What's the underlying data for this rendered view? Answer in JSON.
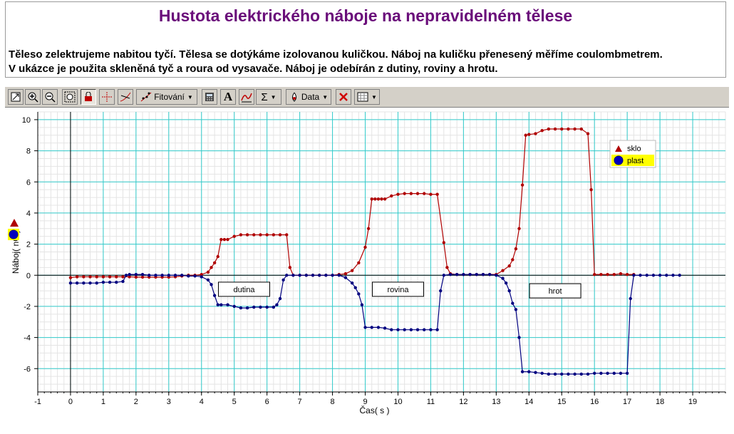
{
  "header": {
    "title": "Hustota elektrického náboje na nepravidelném tělese",
    "description_line1": "Těleso zelektrujeme nabitou tyčí. Tělesa se dotýkáme izolovanou kuličkou. Náboj na kuličku přenesený měříme coulombmetrem.",
    "description_line2": "V ukázce je použita skleněná tyč a roura od vysavače. Náboj je odebírán z dutiny, roviny a hrotu."
  },
  "toolbar": {
    "fit_label": "Fitování",
    "data_label": "Data",
    "sigma_label": "Σ",
    "text_label": "A"
  },
  "colors": {
    "sklo": "#b00000",
    "plast": "#000080",
    "grid": "#33cccc",
    "minor_grid": "#e4e4e4",
    "title": "#6a0d7a"
  },
  "chart_data": {
    "type": "line",
    "xlabel": "Čas( s )",
    "ylabel": "Náboj( nC )",
    "xlim": [
      -1,
      20
    ],
    "ylim": [
      -7.5,
      10.5
    ],
    "xticks": [
      -1,
      0,
      1,
      2,
      3,
      4,
      5,
      6,
      7,
      8,
      9,
      10,
      11,
      12,
      13,
      14,
      15,
      16,
      17,
      18,
      19
    ],
    "yticks": [
      -6,
      -4,
      -2,
      0,
      2,
      4,
      6,
      8,
      10
    ],
    "grid": true,
    "legend_position": "top-right",
    "series": [
      {
        "name": "sklo",
        "marker": "triangle",
        "x": [
          0.0,
          0.2,
          0.4,
          0.6,
          0.8,
          1.0,
          1.2,
          1.4,
          1.6,
          1.8,
          2.0,
          2.2,
          2.4,
          2.6,
          2.8,
          3.0,
          3.2,
          3.4,
          3.6,
          3.8,
          4.0,
          4.2,
          4.3,
          4.4,
          4.5,
          4.6,
          4.7,
          4.8,
          5.0,
          5.2,
          5.4,
          5.6,
          5.8,
          6.0,
          6.2,
          6.4,
          6.6,
          6.7,
          6.8,
          7.0,
          7.2,
          7.4,
          7.6,
          7.8,
          8.0,
          8.2,
          8.4,
          8.6,
          8.8,
          9.0,
          9.1,
          9.2,
          9.3,
          9.4,
          9.5,
          9.6,
          9.8,
          10.0,
          10.2,
          10.4,
          10.6,
          10.8,
          11.0,
          11.2,
          11.4,
          11.5,
          11.6,
          11.8,
          12.0,
          12.2,
          12.4,
          12.6,
          12.8,
          13.0,
          13.2,
          13.4,
          13.5,
          13.6,
          13.7,
          13.8,
          13.9,
          14.0,
          14.2,
          14.4,
          14.6,
          14.8,
          15.0,
          15.2,
          15.4,
          15.6,
          15.8,
          15.9,
          16.0,
          16.2,
          16.4,
          16.6,
          16.8,
          17.0,
          17.2
        ],
        "y": [
          -0.15,
          -0.1,
          -0.1,
          -0.1,
          -0.1,
          -0.1,
          -0.1,
          -0.1,
          -0.1,
          -0.1,
          -0.12,
          -0.12,
          -0.12,
          -0.12,
          -0.12,
          -0.12,
          -0.1,
          -0.05,
          0.0,
          0.0,
          0.05,
          0.2,
          0.5,
          0.8,
          1.2,
          2.3,
          2.3,
          2.3,
          2.5,
          2.6,
          2.6,
          2.6,
          2.6,
          2.6,
          2.6,
          2.6,
          2.6,
          0.5,
          0.0,
          0.0,
          0.0,
          0.0,
          0.0,
          0.0,
          0.0,
          0.05,
          0.1,
          0.3,
          0.8,
          1.8,
          3.0,
          4.9,
          4.9,
          4.9,
          4.9,
          4.9,
          5.1,
          5.2,
          5.25,
          5.25,
          5.25,
          5.25,
          5.2,
          5.2,
          2.1,
          0.5,
          0.1,
          0.05,
          0.05,
          0.05,
          0.05,
          0.05,
          0.05,
          0.05,
          0.3,
          0.6,
          1.0,
          1.7,
          3.0,
          5.8,
          9.0,
          9.05,
          9.1,
          9.3,
          9.4,
          9.4,
          9.4,
          9.4,
          9.4,
          9.4,
          9.1,
          5.5,
          0.05,
          0.05,
          0.05,
          0.05,
          0.1,
          0.05,
          0.05
        ]
      },
      {
        "name": "plast",
        "marker": "circle",
        "x": [
          0.0,
          0.2,
          0.4,
          0.6,
          0.8,
          1.0,
          1.2,
          1.4,
          1.6,
          1.7,
          1.8,
          2.0,
          2.2,
          2.4,
          2.6,
          2.8,
          3.0,
          3.2,
          3.4,
          3.6,
          3.8,
          4.0,
          4.2,
          4.3,
          4.4,
          4.5,
          4.6,
          4.8,
          5.0,
          5.2,
          5.4,
          5.6,
          5.8,
          6.0,
          6.2,
          6.3,
          6.4,
          6.5,
          6.6,
          6.8,
          7.0,
          7.2,
          7.4,
          7.6,
          7.8,
          8.0,
          8.2,
          8.4,
          8.6,
          8.7,
          8.8,
          8.9,
          9.0,
          9.2,
          9.4,
          9.6,
          9.8,
          10.0,
          10.2,
          10.4,
          10.6,
          10.8,
          11.0,
          11.2,
          11.3,
          11.4,
          11.6,
          11.8,
          12.0,
          12.2,
          12.4,
          12.6,
          12.8,
          13.0,
          13.2,
          13.3,
          13.4,
          13.5,
          13.6,
          13.7,
          13.8,
          14.0,
          14.2,
          14.4,
          14.6,
          14.8,
          15.0,
          15.2,
          15.4,
          15.6,
          15.8,
          16.0,
          16.2,
          16.4,
          16.6,
          16.8,
          17.0,
          17.1,
          17.2,
          17.4,
          17.6,
          17.8,
          18.0,
          18.2,
          18.4,
          18.6
        ],
        "y": [
          -0.5,
          -0.5,
          -0.5,
          -0.5,
          -0.5,
          -0.45,
          -0.45,
          -0.45,
          -0.4,
          0.0,
          0.05,
          0.05,
          0.05,
          0.0,
          0.0,
          0.0,
          0.0,
          0.0,
          0.0,
          -0.05,
          -0.05,
          -0.1,
          -0.3,
          -0.6,
          -1.3,
          -1.9,
          -1.9,
          -1.9,
          -2.0,
          -2.1,
          -2.1,
          -2.05,
          -2.05,
          -2.05,
          -2.05,
          -1.9,
          -1.5,
          -0.3,
          0.0,
          0.0,
          0.0,
          0.0,
          0.0,
          0.0,
          0.0,
          0.0,
          0.0,
          -0.15,
          -0.5,
          -0.8,
          -1.2,
          -1.9,
          -3.35,
          -3.35,
          -3.35,
          -3.4,
          -3.5,
          -3.5,
          -3.5,
          -3.5,
          -3.5,
          -3.5,
          -3.5,
          -3.5,
          -1.0,
          0.0,
          0.05,
          0.05,
          0.05,
          0.05,
          0.05,
          0.05,
          0.05,
          0.0,
          -0.2,
          -0.5,
          -1.0,
          -1.8,
          -2.2,
          -4.0,
          -6.2,
          -6.2,
          -6.25,
          -6.3,
          -6.35,
          -6.35,
          -6.35,
          -6.35,
          -6.35,
          -6.35,
          -6.35,
          -6.3,
          -6.3,
          -6.3,
          -6.3,
          -6.3,
          -6.3,
          -1.5,
          0.0,
          0.0,
          0.0,
          0.0,
          0.0,
          0.0,
          0.0,
          0.0
        ]
      }
    ],
    "annotations": [
      {
        "text": "dutina",
        "x": 5.3,
        "y": -0.9
      },
      {
        "text": "rovina",
        "x": 10.0,
        "y": -0.9
      },
      {
        "text": "hrot",
        "x": 14.8,
        "y": -1.0
      }
    ]
  }
}
